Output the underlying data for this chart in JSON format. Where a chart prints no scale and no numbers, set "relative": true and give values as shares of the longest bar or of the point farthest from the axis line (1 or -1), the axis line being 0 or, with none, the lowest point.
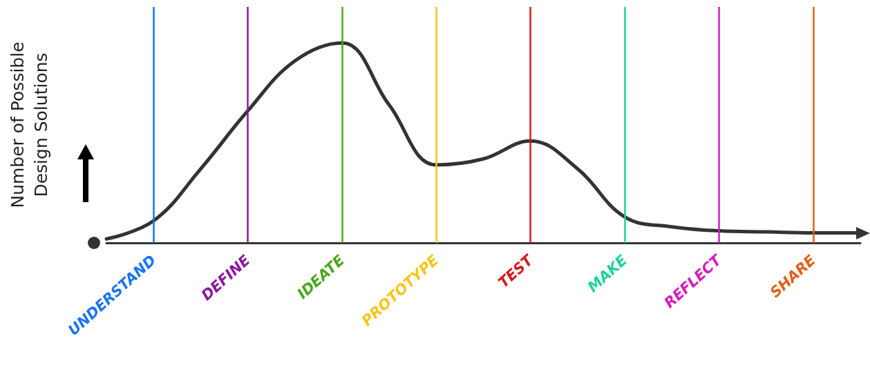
{
  "chart_data": {
    "type": "line",
    "relative": true,
    "ylabel": "Number of Possible\nDesign Solutions",
    "categories": [
      null,
      "UNDERSTAND",
      null,
      "DEFINE",
      null,
      "IDEATE",
      null,
      "PROTOTYPE",
      null,
      "TEST",
      null,
      "MAKE",
      null,
      "REFLECT",
      null,
      "SHARE",
      null
    ],
    "series": [
      {
        "color": "#333333",
        "values": [
          0.02,
          0.11,
          0.37,
          0.66,
          0.91,
          1.0,
          0.69,
          0.39,
          0.42,
          0.51,
          0.37,
          0.13,
          0.08,
          0.06,
          0.055,
          0.05,
          0.05
        ]
      }
    ],
    "ref_lines": [
      {
        "axis": "x",
        "value": "UNDERSTAND",
        "color": "#1a73f0"
      },
      {
        "axis": "x",
        "value": "DEFINE",
        "color": "#8a1a9a"
      },
      {
        "axis": "x",
        "value": "IDEATE",
        "color": "#4aa520"
      },
      {
        "axis": "x",
        "value": "PROTOTYPE",
        "color": "#f5c518"
      },
      {
        "axis": "x",
        "value": "TEST",
        "color": "#d81818"
      },
      {
        "axis": "x",
        "value": "MAKE",
        "color": "#1ed0a0"
      },
      {
        "axis": "x",
        "value": "REFLECT",
        "color": "#d81ab8"
      },
      {
        "axis": "x",
        "value": "SHARE",
        "color": "#e0601a"
      }
    ],
    "grid": false,
    "marker": "none",
    "line_style": "solid"
  }
}
